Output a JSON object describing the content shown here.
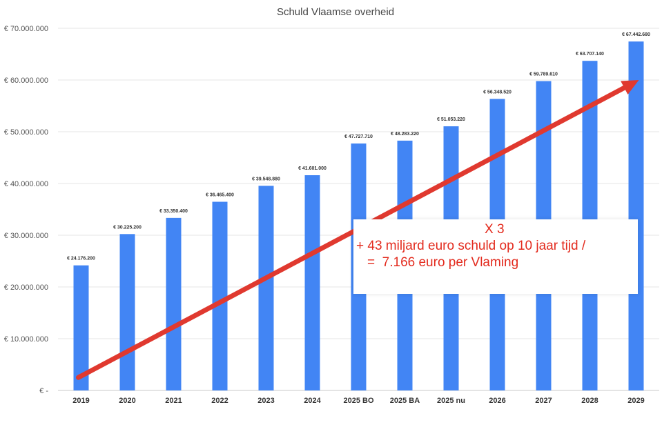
{
  "chart_data": {
    "type": "bar",
    "title": "Schuld Vlaamse overheid",
    "xlabel": "",
    "ylabel": "",
    "ylim": [
      0,
      70000000
    ],
    "y_ticks": [
      {
        "value": 0,
        "label": "€ -"
      },
      {
        "value": 10000000,
        "label": "€ 10.000.000"
      },
      {
        "value": 20000000,
        "label": "€ 20.000.000"
      },
      {
        "value": 30000000,
        "label": "€ 30.000.000"
      },
      {
        "value": 40000000,
        "label": "€ 40.000.000"
      },
      {
        "value": 50000000,
        "label": "€ 50.000.000"
      },
      {
        "value": 60000000,
        "label": "€ 60.000.000"
      },
      {
        "value": 70000000,
        "label": "€ 70.000.000"
      }
    ],
    "categories": [
      "2019",
      "2020",
      "2021",
      "2022",
      "2023",
      "2024",
      "2025 BO",
      "2025 BA",
      "2025 nu",
      "2026",
      "2027",
      "2028",
      "2029"
    ],
    "values": [
      24176200,
      30225200,
      33350400,
      36465400,
      39548880,
      41601000,
      47727710,
      48283220,
      51053220,
      56348520,
      59789610,
      63707140,
      67442680
    ],
    "data_labels": [
      "€ 24.176.200",
      "€ 30.225.200",
      "€ 33.350.400",
      "€ 36.465.400",
      "€ 39.548.880",
      "€ 41.601.000",
      "€ 47.727.710",
      "€ 48.283.220",
      "€ 51.053.220",
      "€ 56.348.520",
      "€ 59.789.610",
      "€ 63.707.140",
      "€ 67.442.680"
    ],
    "bar_color": "#4285f4",
    "grid": true,
    "legend": "none",
    "trend_arrow": {
      "from": {
        "x": "2019",
        "y": 2500000
      },
      "to": {
        "x": "2029",
        "y": 60000000
      },
      "color": "#e0392f"
    }
  },
  "annotation": {
    "line1": "X 3",
    "line2": "+ 43 miljard euro schuld op 10 jaar tijd /",
    "line3": "=  7.166 euro per Vlaming",
    "color": "#e32b1e"
  }
}
